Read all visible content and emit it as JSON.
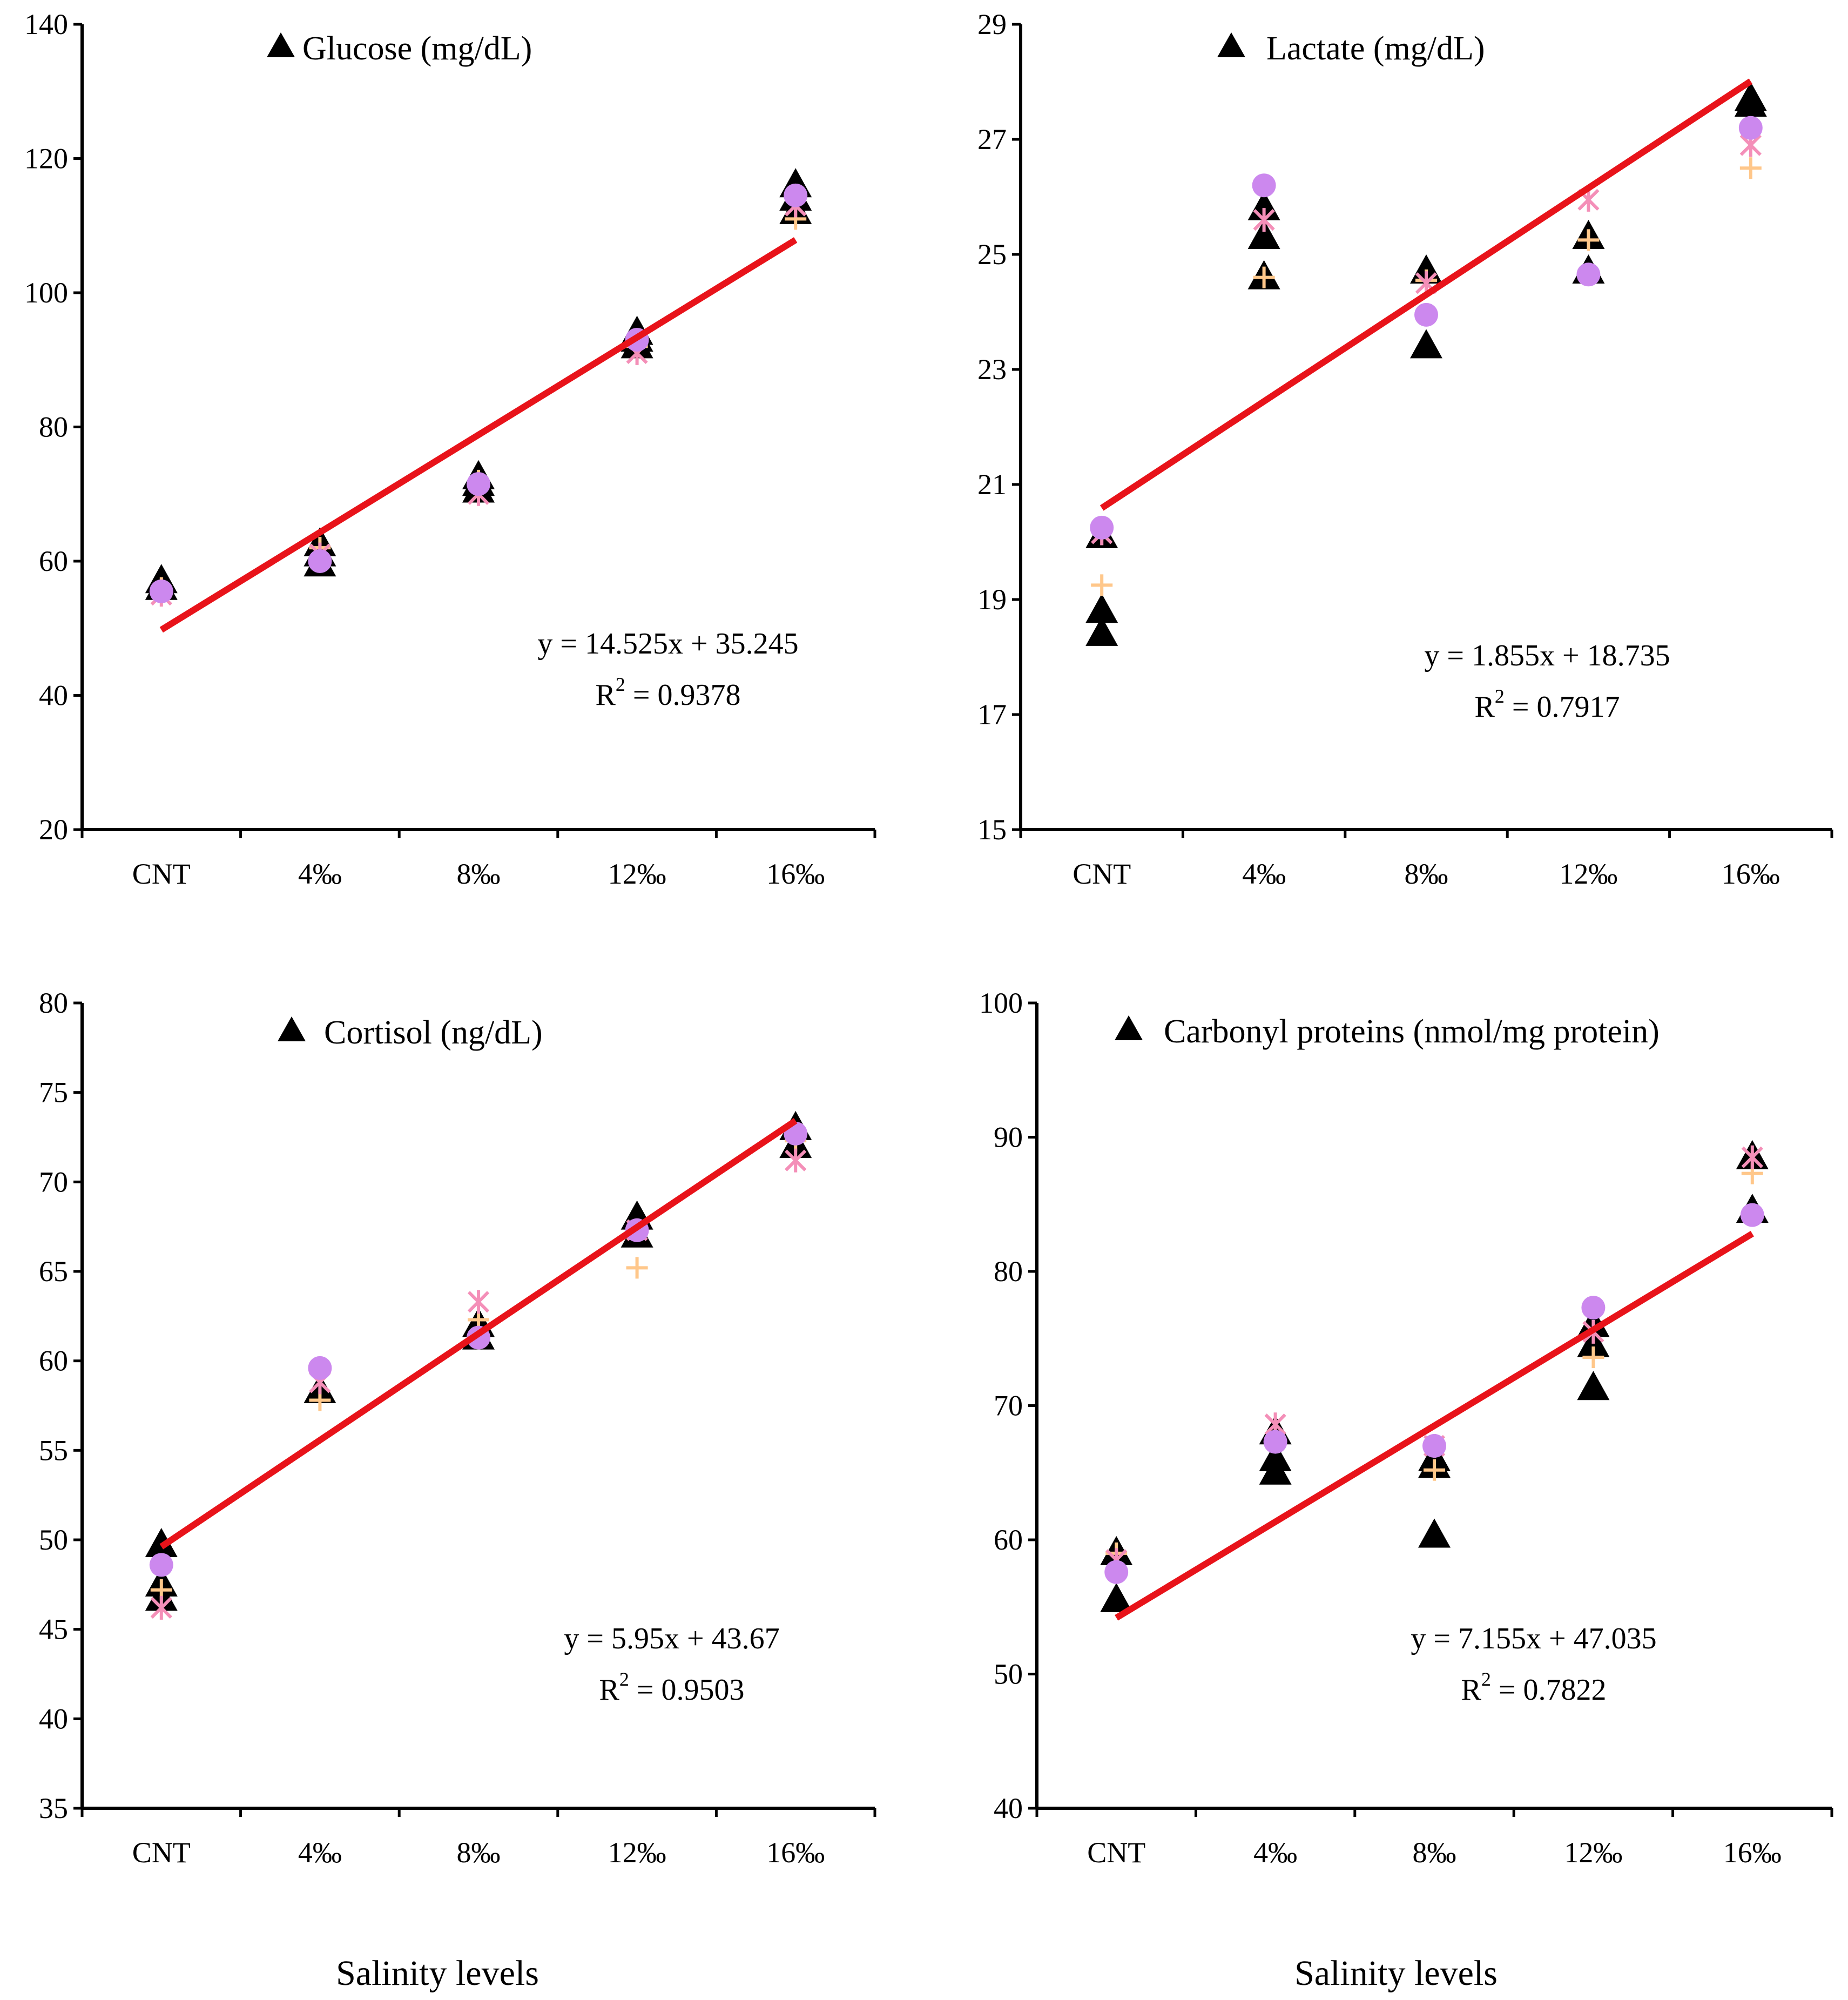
{
  "figure": {
    "x_axis_label": "Salinity levels",
    "marker_colors": {
      "triangle": "#000000",
      "plus": "#FFC78A",
      "cross": "#F48FB8",
      "circle": "#CC88EE",
      "trend": "#E8131A"
    }
  },
  "chart_data": [
    {
      "type": "scatter",
      "title": "Glucose (mg/dL)",
      "categories": [
        "CNT",
        "4‰",
        "8‰",
        "12‰",
        "16‰"
      ],
      "ylim": [
        20,
        140
      ],
      "yticks": [
        20,
        40,
        60,
        80,
        100,
        120,
        140
      ],
      "series": [
        {
          "name": "replicate-triangles",
          "marker": "triangle",
          "points": [
            [
              1,
              56
            ],
            [
              1,
              57
            ],
            [
              2,
              59.5
            ],
            [
              2,
              61
            ],
            [
              2,
              62.5
            ],
            [
              3,
              70.5
            ],
            [
              3,
              71.5
            ],
            [
              3,
              72.5
            ],
            [
              4,
              92
            ],
            [
              4,
              93
            ],
            [
              4,
              94
            ],
            [
              5,
              112
            ],
            [
              5,
              114
            ],
            [
              5,
              116
            ]
          ]
        },
        {
          "name": "replicate-plus",
          "marker": "plus",
          "points": [
            [
              1,
              56
            ],
            [
              2,
              62
            ],
            [
              3,
              72
            ],
            [
              4,
              92
            ],
            [
              5,
              111
            ]
          ]
        },
        {
          "name": "replicate-cross",
          "marker": "cross",
          "points": [
            [
              1,
              55
            ],
            [
              2,
              61
            ],
            [
              3,
              70
            ],
            [
              4,
              91
            ],
            [
              5,
              113
            ]
          ]
        },
        {
          "name": "replicate-circle",
          "marker": "circle",
          "points": [
            [
              1,
              55.5
            ],
            [
              2,
              60
            ],
            [
              3,
              71.5
            ],
            [
              4,
              93
            ],
            [
              5,
              114.5
            ]
          ]
        }
      ],
      "trendline": {
        "slope": 14.525,
        "intercept": 35.245
      },
      "equation": "y = 14.525x + 35.245",
      "r2_prefix": "R",
      "r2_sup": "2",
      "r2_value": " = 0.9378"
    },
    {
      "type": "scatter",
      "title": "Lactate (mg/dL)",
      "categories": [
        "CNT",
        "4‰",
        "8‰",
        "12‰",
        "16‰"
      ],
      "ylim": [
        15,
        29
      ],
      "yticks": [
        15,
        17,
        19,
        21,
        23,
        25,
        27,
        29
      ],
      "series": [
        {
          "name": "replicate-triangles",
          "marker": "triangle",
          "points": [
            [
              1,
              20.1
            ],
            [
              1,
              18.8
            ],
            [
              1,
              18.4
            ],
            [
              2,
              25.8
            ],
            [
              2,
              25.3
            ],
            [
              2,
              24.6
            ],
            [
              3,
              24.7
            ],
            [
              3,
              23.4
            ],
            [
              4,
              25.3
            ],
            [
              4,
              24.7
            ],
            [
              5,
              27.6
            ],
            [
              5,
              27.7
            ]
          ]
        },
        {
          "name": "replicate-plus",
          "marker": "plus",
          "points": [
            [
              1,
              19.25
            ],
            [
              2,
              24.6
            ],
            [
              3,
              24.55
            ],
            [
              4,
              25.25
            ],
            [
              5,
              26.5
            ]
          ]
        },
        {
          "name": "replicate-cross",
          "marker": "cross",
          "points": [
            [
              1,
              20.15
            ],
            [
              2,
              25.6
            ],
            [
              3,
              24.5
            ],
            [
              4,
              25.95
            ],
            [
              5,
              26.9
            ]
          ]
        },
        {
          "name": "replicate-circle",
          "marker": "circle",
          "points": [
            [
              1,
              20.25
            ],
            [
              2,
              26.2
            ],
            [
              3,
              23.95
            ],
            [
              4,
              24.65
            ],
            [
              5,
              27.2
            ]
          ]
        }
      ],
      "trendline": {
        "slope": 1.855,
        "intercept": 18.735
      },
      "equation": "y = 1.855x + 18.735",
      "r2_prefix": "R",
      "r2_sup": "2",
      "r2_value": " = 0.7917"
    },
    {
      "type": "scatter",
      "title": "Cortisol (ng/dL)",
      "categories": [
        "CNT",
        "4‰",
        "8‰",
        "12‰",
        "16‰"
      ],
      "ylim": [
        35,
        80
      ],
      "yticks": [
        35,
        40,
        45,
        50,
        55,
        60,
        65,
        70,
        75,
        80
      ],
      "series": [
        {
          "name": "replicate-triangles",
          "marker": "triangle",
          "points": [
            [
              1,
              49.7
            ],
            [
              1,
              47.5
            ],
            [
              1,
              46.7
            ],
            [
              2,
              58.3
            ],
            [
              3,
              61.3
            ],
            [
              3,
              62
            ],
            [
              4,
              68
            ],
            [
              4,
              67
            ],
            [
              5,
              73
            ],
            [
              5,
              72
            ]
          ]
        },
        {
          "name": "replicate-plus",
          "marker": "plus",
          "points": [
            [
              1,
              47.2
            ],
            [
              2,
              57.8
            ],
            [
              3,
              62.3
            ],
            [
              4,
              65.2
            ],
            [
              5,
              72.3
            ]
          ]
        },
        {
          "name": "replicate-cross",
          "marker": "cross",
          "points": [
            [
              1,
              46.2
            ],
            [
              2,
              58.8
            ],
            [
              3,
              63.3
            ],
            [
              4,
              67.3
            ],
            [
              5,
              71.2
            ]
          ]
        },
        {
          "name": "replicate-circle",
          "marker": "circle",
          "points": [
            [
              1,
              48.6
            ],
            [
              2,
              59.6
            ],
            [
              3,
              61.3
            ],
            [
              4,
              67.3
            ],
            [
              5,
              72.7
            ]
          ]
        }
      ],
      "trendline": {
        "slope": 5.95,
        "intercept": 43.67
      },
      "equation": "y = 5.95x + 43.67",
      "r2_prefix": "R",
      "r2_sup": "2",
      "r2_value": " = 0.9503"
    },
    {
      "type": "scatter",
      "title": "Carbonyl proteins (nmol/mg protein)",
      "categories": [
        "CNT",
        "4‰",
        "8‰",
        "12‰",
        "16‰"
      ],
      "ylim": [
        40,
        100
      ],
      "yticks": [
        40,
        50,
        60,
        70,
        80,
        90,
        100
      ],
      "series": [
        {
          "name": "replicate-triangles",
          "marker": "triangle",
          "points": [
            [
              1,
              59
            ],
            [
              1,
              55.5
            ],
            [
              2,
              68
            ],
            [
              2,
              66
            ],
            [
              2,
              65
            ],
            [
              3,
              66
            ],
            [
              3,
              65.5
            ],
            [
              3,
              60.3
            ],
            [
              4,
              76
            ],
            [
              4,
              74.5
            ],
            [
              4,
              71.3
            ],
            [
              5,
              88.5
            ],
            [
              5,
              84.5
            ]
          ]
        },
        {
          "name": "replicate-plus",
          "marker": "plus",
          "points": [
            [
              1,
              59
            ],
            [
              2,
              67.5
            ],
            [
              3,
              65.2
            ],
            [
              4,
              73.6
            ],
            [
              5,
              87.3
            ]
          ]
        },
        {
          "name": "replicate-cross",
          "marker": "cross",
          "points": [
            [
              1,
              58.5
            ],
            [
              2,
              68.6
            ],
            [
              3,
              67
            ],
            [
              4,
              75.5
            ],
            [
              5,
              88.5
            ]
          ]
        },
        {
          "name": "replicate-circle",
          "marker": "circle",
          "points": [
            [
              1,
              57.6
            ],
            [
              2,
              67.3
            ],
            [
              3,
              67
            ],
            [
              4,
              77.3
            ],
            [
              5,
              84.2
            ]
          ]
        }
      ],
      "trendline": {
        "slope": 7.155,
        "intercept": 47.035
      },
      "equation": "y = 7.155x + 47.035",
      "r2_prefix": "R",
      "r2_sup": "2",
      "r2_value": " = 0.7822"
    }
  ]
}
